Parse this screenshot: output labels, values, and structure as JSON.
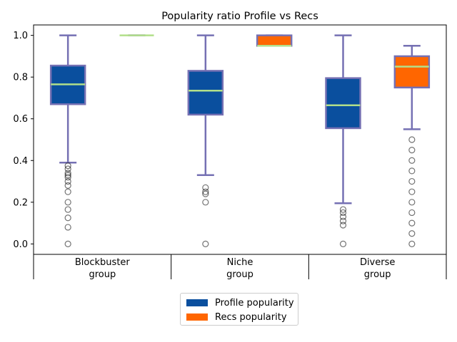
{
  "chart_data": {
    "type": "box",
    "title": "Popularity ratio Profile vs Recs",
    "xlabel": "",
    "ylabel": "",
    "ylim": [
      -0.05,
      1.05
    ],
    "yticks": [
      "0.0",
      "0.2",
      "0.4",
      "0.6",
      "0.8",
      "1.0"
    ],
    "categories": [
      "Blockbuster group",
      "Niche group",
      "Diverse group"
    ],
    "legend_position": "bottom-center",
    "series": [
      {
        "name": "Profile popularity",
        "color": "#0a4f9e",
        "boxes": [
          {
            "q1": 0.67,
            "median": 0.765,
            "q3": 0.855,
            "whisker_low": 0.39,
            "whisker_high": 1.0,
            "outliers": [
              0.375,
              0.36,
              0.34,
              0.33,
              0.32,
              0.3,
              0.28,
              0.25,
              0.2,
              0.165,
              0.125,
              0.08,
              0.0
            ]
          },
          {
            "q1": 0.62,
            "median": 0.735,
            "q3": 0.83,
            "whisker_low": 0.33,
            "whisker_high": 1.0,
            "outliers": [
              0.27,
              0.25,
              0.24,
              0.2,
              0.0
            ]
          },
          {
            "q1": 0.555,
            "median": 0.665,
            "q3": 0.795,
            "whisker_low": 0.195,
            "whisker_high": 1.0,
            "outliers": [
              0.165,
              0.15,
              0.13,
              0.11,
              0.09,
              0.0
            ]
          }
        ]
      },
      {
        "name": "Recs popularity",
        "color": "#ff6600",
        "boxes": [
          {
            "q1": 1.0,
            "median": 1.0,
            "q3": 1.0,
            "whisker_low": 1.0,
            "whisker_high": 1.0,
            "outliers": []
          },
          {
            "q1": 0.95,
            "median": 0.95,
            "q3": 1.0,
            "whisker_low": 0.95,
            "whisker_high": 1.0,
            "outliers": []
          },
          {
            "q1": 0.75,
            "median": 0.85,
            "q3": 0.9,
            "whisker_low": 0.55,
            "whisker_high": 0.95,
            "outliers": [
              0.5,
              0.45,
              0.4,
              0.35,
              0.3,
              0.25,
              0.2,
              0.15,
              0.1,
              0.05,
              0.0
            ]
          }
        ]
      }
    ]
  },
  "legend": {
    "items": [
      {
        "label": "Profile popularity",
        "color": "#0a4f9e"
      },
      {
        "label": "Recs popularity",
        "color": "#ff6600"
      }
    ]
  }
}
